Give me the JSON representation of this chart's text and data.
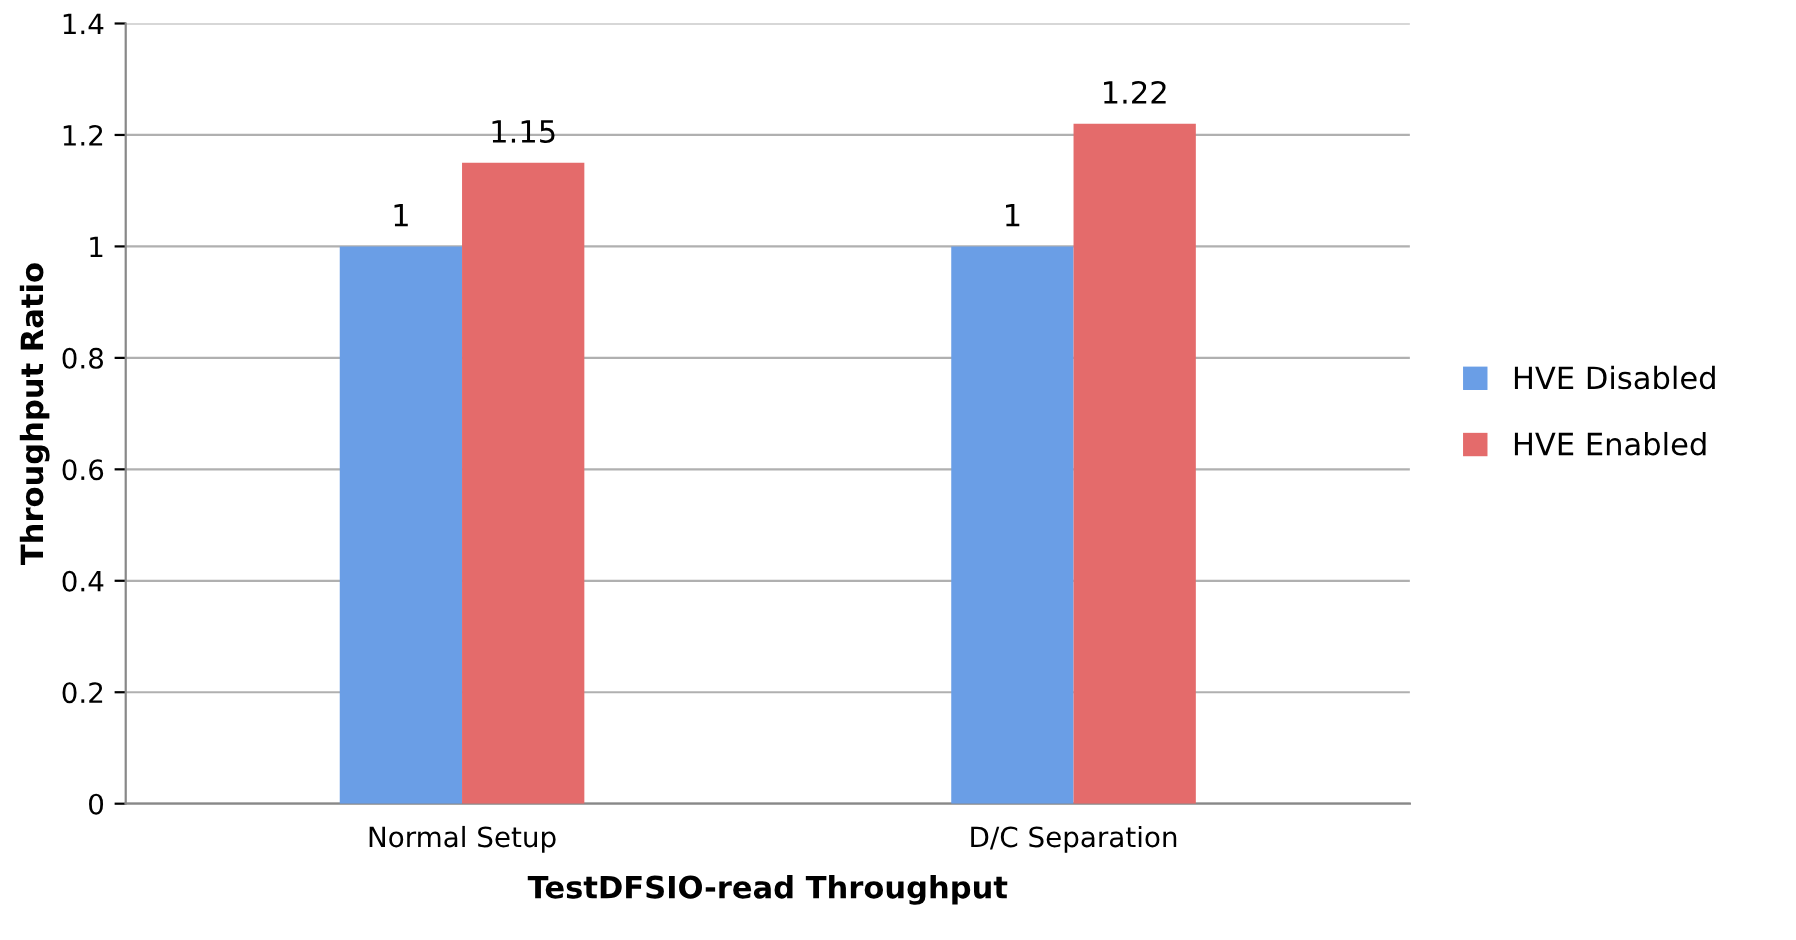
{
  "chart_data": {
    "type": "bar",
    "xlabel": "TestDFSIO-read Throughput",
    "ylabel": "Throughput Ratio",
    "categories": [
      "Normal Setup",
      "D/C Separation"
    ],
    "series": [
      {
        "name": "HVE Disabled",
        "color": "#6a9ee6",
        "values": [
          1,
          1
        ]
      },
      {
        "name": "HVE Enabled",
        "color": "#e46b6b",
        "values": [
          1.15,
          1.22
        ]
      }
    ],
    "ylim": [
      0,
      1.4
    ],
    "yticks": [
      0,
      0.2,
      0.4,
      0.6,
      0.8,
      1,
      1.2,
      1.4
    ],
    "grid": "y",
    "legend": "right",
    "data_labels": true
  }
}
